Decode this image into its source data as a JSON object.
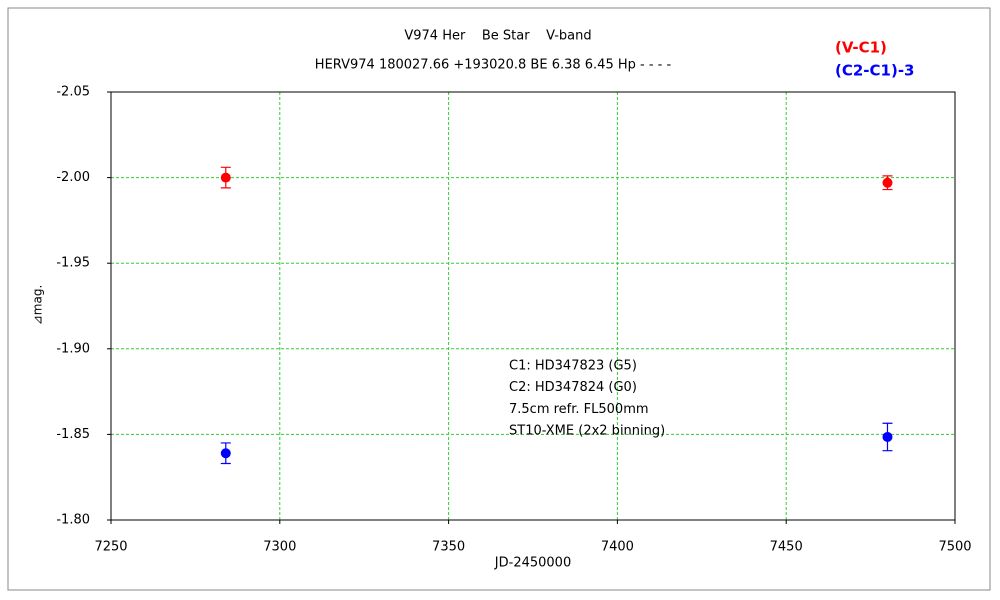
{
  "chart_data": {
    "type": "scatter",
    "title": "V974 Her    Be Star    V-band",
    "subtitle": "HERV974 180027.66 +193020.8 BE 6.38 6.45 Hp - - - -",
    "x_label": "JD-2450000",
    "y_label": "⊿mag.",
    "annotations": [
      "C1: HD347823 (G5)",
      "C2: HD347824 (G0)",
      "7.5cm refr. FL500mm",
      "ST10-XME (2x2 binning)"
    ],
    "xlim": [
      7250,
      7500
    ],
    "xticks": [
      7250,
      7300,
      7350,
      7400,
      7450,
      7500
    ],
    "ylim": [
      -1.8,
      -2.05
    ],
    "yticks": [
      -2.05,
      {
        "value": -2.0,
        "label": "-2.00"
      },
      -1.95,
      {
        "value": -1.9,
        "label": "-1.90"
      },
      -1.85,
      {
        "value": -1.8,
        "label": "-1.80"
      }
    ],
    "grid": true,
    "series": [
      {
        "name": "(V-C1)",
        "color": "#ff0000",
        "x": [
          7284,
          7480
        ],
        "values": [
          -2.0,
          -1.997
        ],
        "errors": [
          0.006,
          0.004
        ]
      },
      {
        "name": "(C2-C1)-3",
        "color": "#0000ff",
        "x": [
          7284,
          7480
        ],
        "values": [
          -1.839,
          -1.8485
        ],
        "errors": [
          0.006,
          0.008
        ]
      }
    ]
  }
}
